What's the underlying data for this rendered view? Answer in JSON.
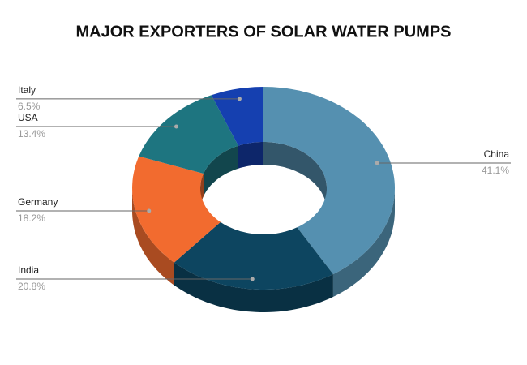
{
  "chart_data": {
    "type": "donut",
    "title": "MAJOR EXPORTERS OF SOLAR WATER PUMPS",
    "categories": [
      "China",
      "India",
      "Germany",
      "USA",
      "Italy"
    ],
    "values": [
      41.1,
      20.8,
      18.2,
      13.4,
      6.5
    ],
    "value_labels": [
      "41.1%",
      "20.8%",
      "18.2%",
      "13.4%",
      "6.5%"
    ],
    "colors": [
      "#5590b0",
      "#0d4560",
      "#f26b2f",
      "#1e7580",
      "#1540b0"
    ]
  }
}
